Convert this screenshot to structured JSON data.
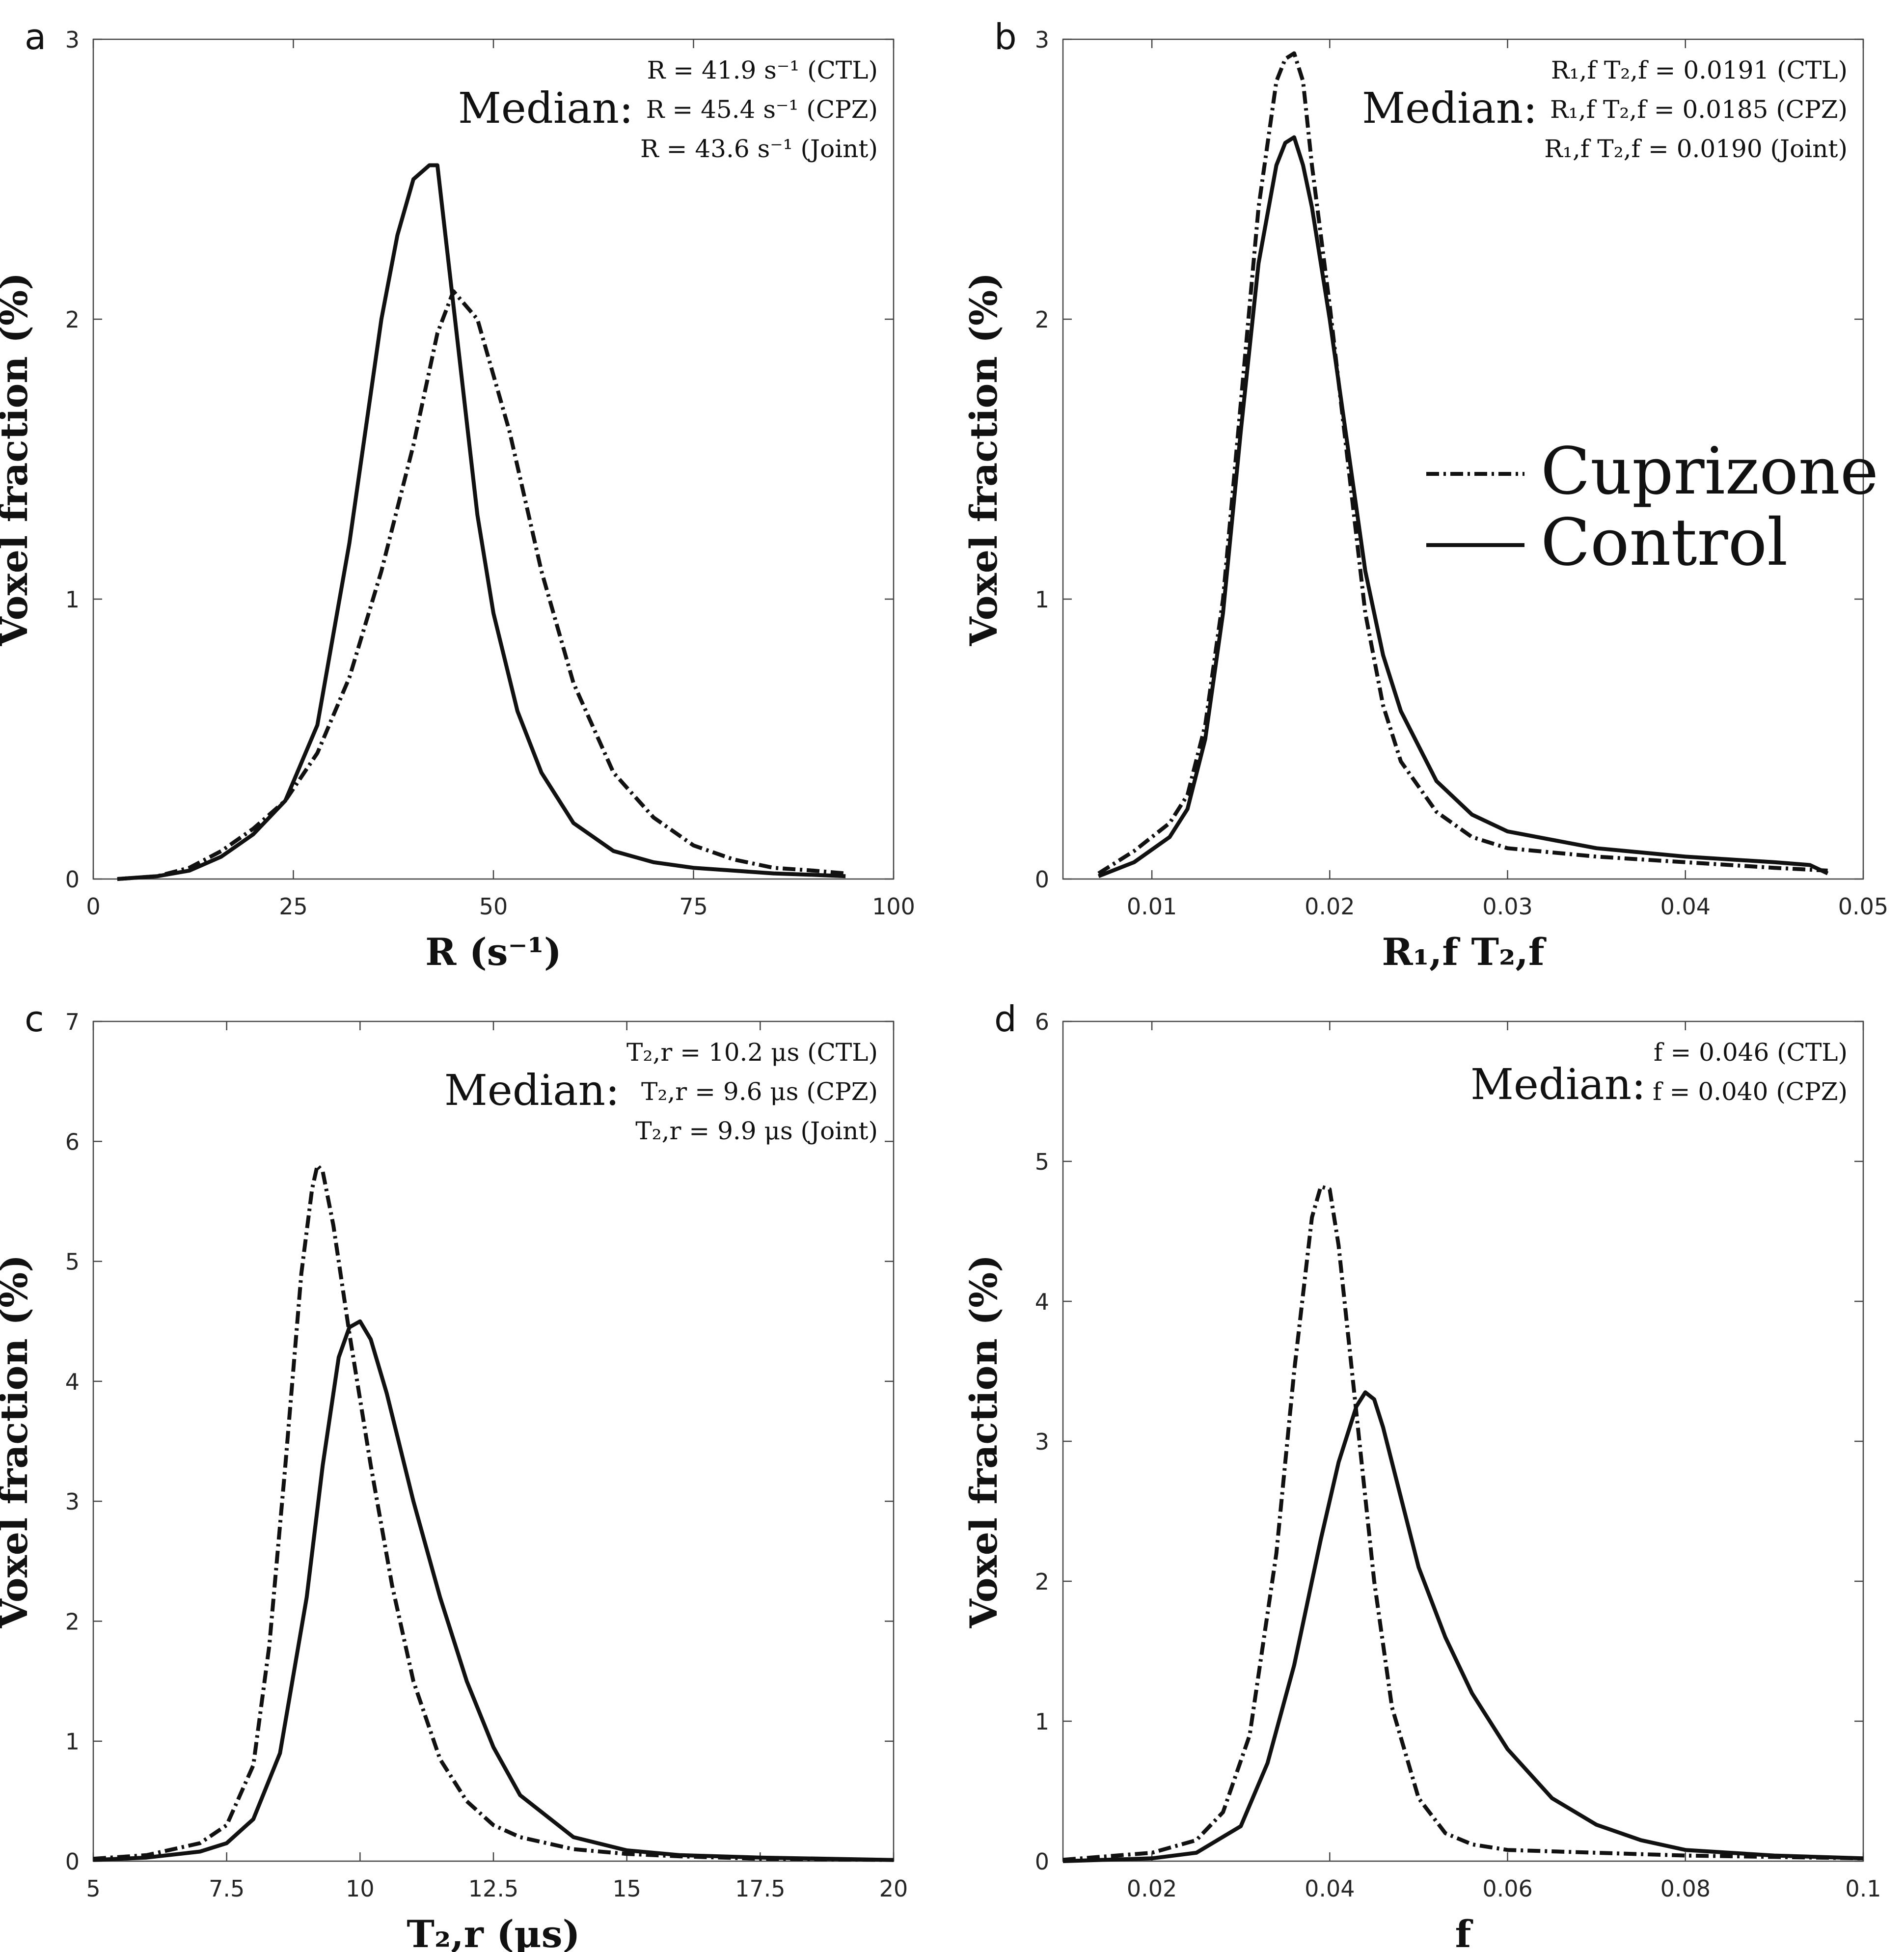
{
  "legend": {
    "cuprizone": "Cuprizone",
    "control": "Control"
  },
  "chart_data": [
    {
      "type": "line",
      "panel": "a",
      "xlabel": "R (s⁻¹)",
      "ylabel": "Voxel fraction (%)",
      "xlim": [
        0,
        100
      ],
      "ylim": [
        0,
        3
      ],
      "xticks": [
        0,
        25,
        50,
        75,
        100
      ],
      "xtick_labels": [
        "0",
        "25",
        "50",
        "75",
        "100"
      ],
      "yticks": [
        0,
        1,
        2,
        3
      ],
      "ytick_labels": [
        "0",
        "1",
        "2",
        "3"
      ],
      "median_label": "Median:",
      "median_lines": [
        "R = 41.9 s⁻¹ (CTL)",
        "R = 45.4 s⁻¹ (CPZ)",
        "R = 43.6 s⁻¹ (Joint)"
      ],
      "series": [
        {
          "name": "Cuprizone",
          "style": "dashdot",
          "x": [
            3,
            8,
            12,
            16,
            20,
            24,
            28,
            32,
            36,
            40,
            43,
            45,
            48,
            52,
            56,
            60,
            65,
            70,
            75,
            80,
            85,
            90,
            94
          ],
          "y": [
            0,
            0.01,
            0.04,
            0.1,
            0.18,
            0.28,
            0.45,
            0.72,
            1.1,
            1.55,
            1.95,
            2.1,
            2.0,
            1.6,
            1.1,
            0.7,
            0.38,
            0.22,
            0.12,
            0.07,
            0.04,
            0.03,
            0.02
          ]
        },
        {
          "name": "Control",
          "style": "solid",
          "x": [
            3,
            8,
            12,
            16,
            20,
            24,
            28,
            32,
            36,
            38,
            40,
            42,
            43,
            44,
            46,
            48,
            50,
            53,
            56,
            60,
            65,
            70,
            75,
            80,
            85,
            90,
            94
          ],
          "y": [
            0,
            0.01,
            0.03,
            0.08,
            0.16,
            0.28,
            0.55,
            1.2,
            2.0,
            2.3,
            2.5,
            2.55,
            2.55,
            2.3,
            1.8,
            1.3,
            0.95,
            0.6,
            0.38,
            0.2,
            0.1,
            0.06,
            0.04,
            0.03,
            0.02,
            0.015,
            0.01
          ]
        }
      ]
    },
    {
      "type": "line",
      "panel": "b",
      "xlabel": "R₁,f T₂,f",
      "ylabel": "Voxel fraction (%)",
      "xlim": [
        0.005,
        0.05
      ],
      "ylim": [
        0,
        3
      ],
      "xticks": [
        0.01,
        0.02,
        0.03,
        0.04,
        0.05
      ],
      "xtick_labels": [
        "0.01",
        "0.02",
        "0.03",
        "0.04",
        "0.05"
      ],
      "yticks": [
        0,
        1,
        2,
        3
      ],
      "ytick_labels": [
        "0",
        "1",
        "2",
        "3"
      ],
      "median_label": "Median:",
      "median_lines": [
        "R₁,f T₂,f = 0.0191 (CTL)",
        "R₁,f T₂,f = 0.0185 (CPZ)",
        "R₁,f T₂,f = 0.0190 (Joint)"
      ],
      "series": [
        {
          "name": "Cuprizone",
          "style": "dashdot",
          "x": [
            0.007,
            0.009,
            0.011,
            0.012,
            0.013,
            0.014,
            0.015,
            0.016,
            0.017,
            0.0175,
            0.018,
            0.0185,
            0.019,
            0.02,
            0.021,
            0.022,
            0.023,
            0.024,
            0.026,
            0.028,
            0.03,
            0.035,
            0.04,
            0.045,
            0.048
          ],
          "y": [
            0.02,
            0.1,
            0.2,
            0.3,
            0.55,
            1.0,
            1.7,
            2.4,
            2.85,
            2.93,
            2.95,
            2.85,
            2.55,
            2.05,
            1.5,
            0.95,
            0.62,
            0.42,
            0.24,
            0.15,
            0.11,
            0.08,
            0.06,
            0.04,
            0.03
          ]
        },
        {
          "name": "Control",
          "style": "solid",
          "x": [
            0.007,
            0.009,
            0.011,
            0.012,
            0.013,
            0.014,
            0.015,
            0.016,
            0.017,
            0.0175,
            0.018,
            0.0185,
            0.019,
            0.02,
            0.021,
            0.022,
            0.023,
            0.024,
            0.026,
            0.028,
            0.03,
            0.035,
            0.04,
            0.045,
            0.047,
            0.048
          ],
          "y": [
            0.01,
            0.06,
            0.15,
            0.25,
            0.5,
            0.95,
            1.6,
            2.2,
            2.55,
            2.63,
            2.65,
            2.55,
            2.4,
            2.0,
            1.55,
            1.1,
            0.8,
            0.6,
            0.35,
            0.23,
            0.17,
            0.11,
            0.08,
            0.06,
            0.05,
            0.02
          ]
        }
      ]
    },
    {
      "type": "line",
      "panel": "c",
      "xlabel": "T₂,r (μs)",
      "ylabel": "Voxel fraction (%)",
      "xlim": [
        5,
        20
      ],
      "ylim": [
        0,
        7
      ],
      "xticks": [
        5,
        7.5,
        10,
        12.5,
        15,
        17.5,
        20
      ],
      "xtick_labels": [
        "5",
        "7.5",
        "10",
        "12.5",
        "15",
        "17.5",
        "20"
      ],
      "yticks": [
        0,
        1,
        2,
        3,
        4,
        5,
        6,
        7
      ],
      "ytick_labels": [
        "0",
        "1",
        "2",
        "3",
        "4",
        "5",
        "6",
        "7"
      ],
      "median_label": "Median:",
      "median_lines": [
        "T₂,r = 10.2 μs (CTL)",
        "T₂,r = 9.6 μs (CPZ)",
        "T₂,r = 9.9 μs (Joint)"
      ],
      "series": [
        {
          "name": "Cuprizone",
          "style": "dashdot",
          "x": [
            5,
            6,
            7,
            7.5,
            8,
            8.3,
            8.6,
            8.9,
            9.1,
            9.2,
            9.3,
            9.5,
            9.8,
            10.2,
            10.6,
            11,
            11.5,
            12,
            12.5,
            13,
            14,
            15,
            16,
            17.5,
            20
          ],
          "y": [
            0.02,
            0.05,
            0.15,
            0.3,
            0.8,
            1.8,
            3.3,
            4.9,
            5.6,
            5.8,
            5.75,
            5.3,
            4.4,
            3.3,
            2.3,
            1.5,
            0.85,
            0.5,
            0.3,
            0.2,
            0.1,
            0.06,
            0.04,
            0.02,
            0.01
          ]
        },
        {
          "name": "Control",
          "style": "solid",
          "x": [
            5,
            6,
            7,
            7.5,
            8,
            8.5,
            9,
            9.3,
            9.6,
            9.8,
            10,
            10.2,
            10.5,
            11,
            11.5,
            12,
            12.5,
            13,
            14,
            15,
            16,
            17.5,
            20
          ],
          "y": [
            0.01,
            0.03,
            0.08,
            0.15,
            0.35,
            0.9,
            2.2,
            3.3,
            4.2,
            4.45,
            4.5,
            4.35,
            3.9,
            3.0,
            2.2,
            1.5,
            0.95,
            0.55,
            0.2,
            0.09,
            0.05,
            0.03,
            0.01
          ]
        }
      ]
    },
    {
      "type": "line",
      "panel": "d",
      "xlabel": "f",
      "ylabel": "Voxel fraction (%)",
      "xlim": [
        0.01,
        0.1
      ],
      "ylim": [
        0,
        6
      ],
      "xticks": [
        0.02,
        0.04,
        0.06,
        0.08,
        0.1
      ],
      "xtick_labels": [
        "0.02",
        "0.04",
        "0.06",
        "0.08",
        "0.1"
      ],
      "yticks": [
        0,
        1,
        2,
        3,
        4,
        5,
        6
      ],
      "ytick_labels": [
        "0",
        "1",
        "2",
        "3",
        "4",
        "5",
        "6"
      ],
      "median_label": "Median:",
      "median_lines": [
        "f = 0.046 (CTL)",
        "f = 0.040 (CPZ)"
      ],
      "series": [
        {
          "name": "Cuprizone",
          "style": "dashdot",
          "x": [
            0.01,
            0.02,
            0.025,
            0.028,
            0.031,
            0.034,
            0.036,
            0.038,
            0.039,
            0.04,
            0.041,
            0.043,
            0.045,
            0.047,
            0.05,
            0.053,
            0.056,
            0.06,
            0.07,
            0.08,
            0.09,
            0.1
          ],
          "y": [
            0.01,
            0.06,
            0.15,
            0.35,
            0.9,
            2.2,
            3.5,
            4.6,
            4.82,
            4.8,
            4.4,
            3.2,
            2.0,
            1.1,
            0.45,
            0.2,
            0.12,
            0.08,
            0.06,
            0.04,
            0.03,
            0.02
          ]
        },
        {
          "name": "Control",
          "style": "solid",
          "x": [
            0.01,
            0.02,
            0.025,
            0.03,
            0.033,
            0.036,
            0.039,
            0.041,
            0.043,
            0.044,
            0.045,
            0.046,
            0.048,
            0.05,
            0.053,
            0.056,
            0.06,
            0.065,
            0.07,
            0.075,
            0.08,
            0.09,
            0.1
          ],
          "y": [
            0.0,
            0.02,
            0.06,
            0.25,
            0.7,
            1.4,
            2.3,
            2.85,
            3.25,
            3.35,
            3.3,
            3.1,
            2.6,
            2.1,
            1.6,
            1.2,
            0.8,
            0.45,
            0.26,
            0.15,
            0.08,
            0.04,
            0.02
          ]
        }
      ]
    }
  ]
}
